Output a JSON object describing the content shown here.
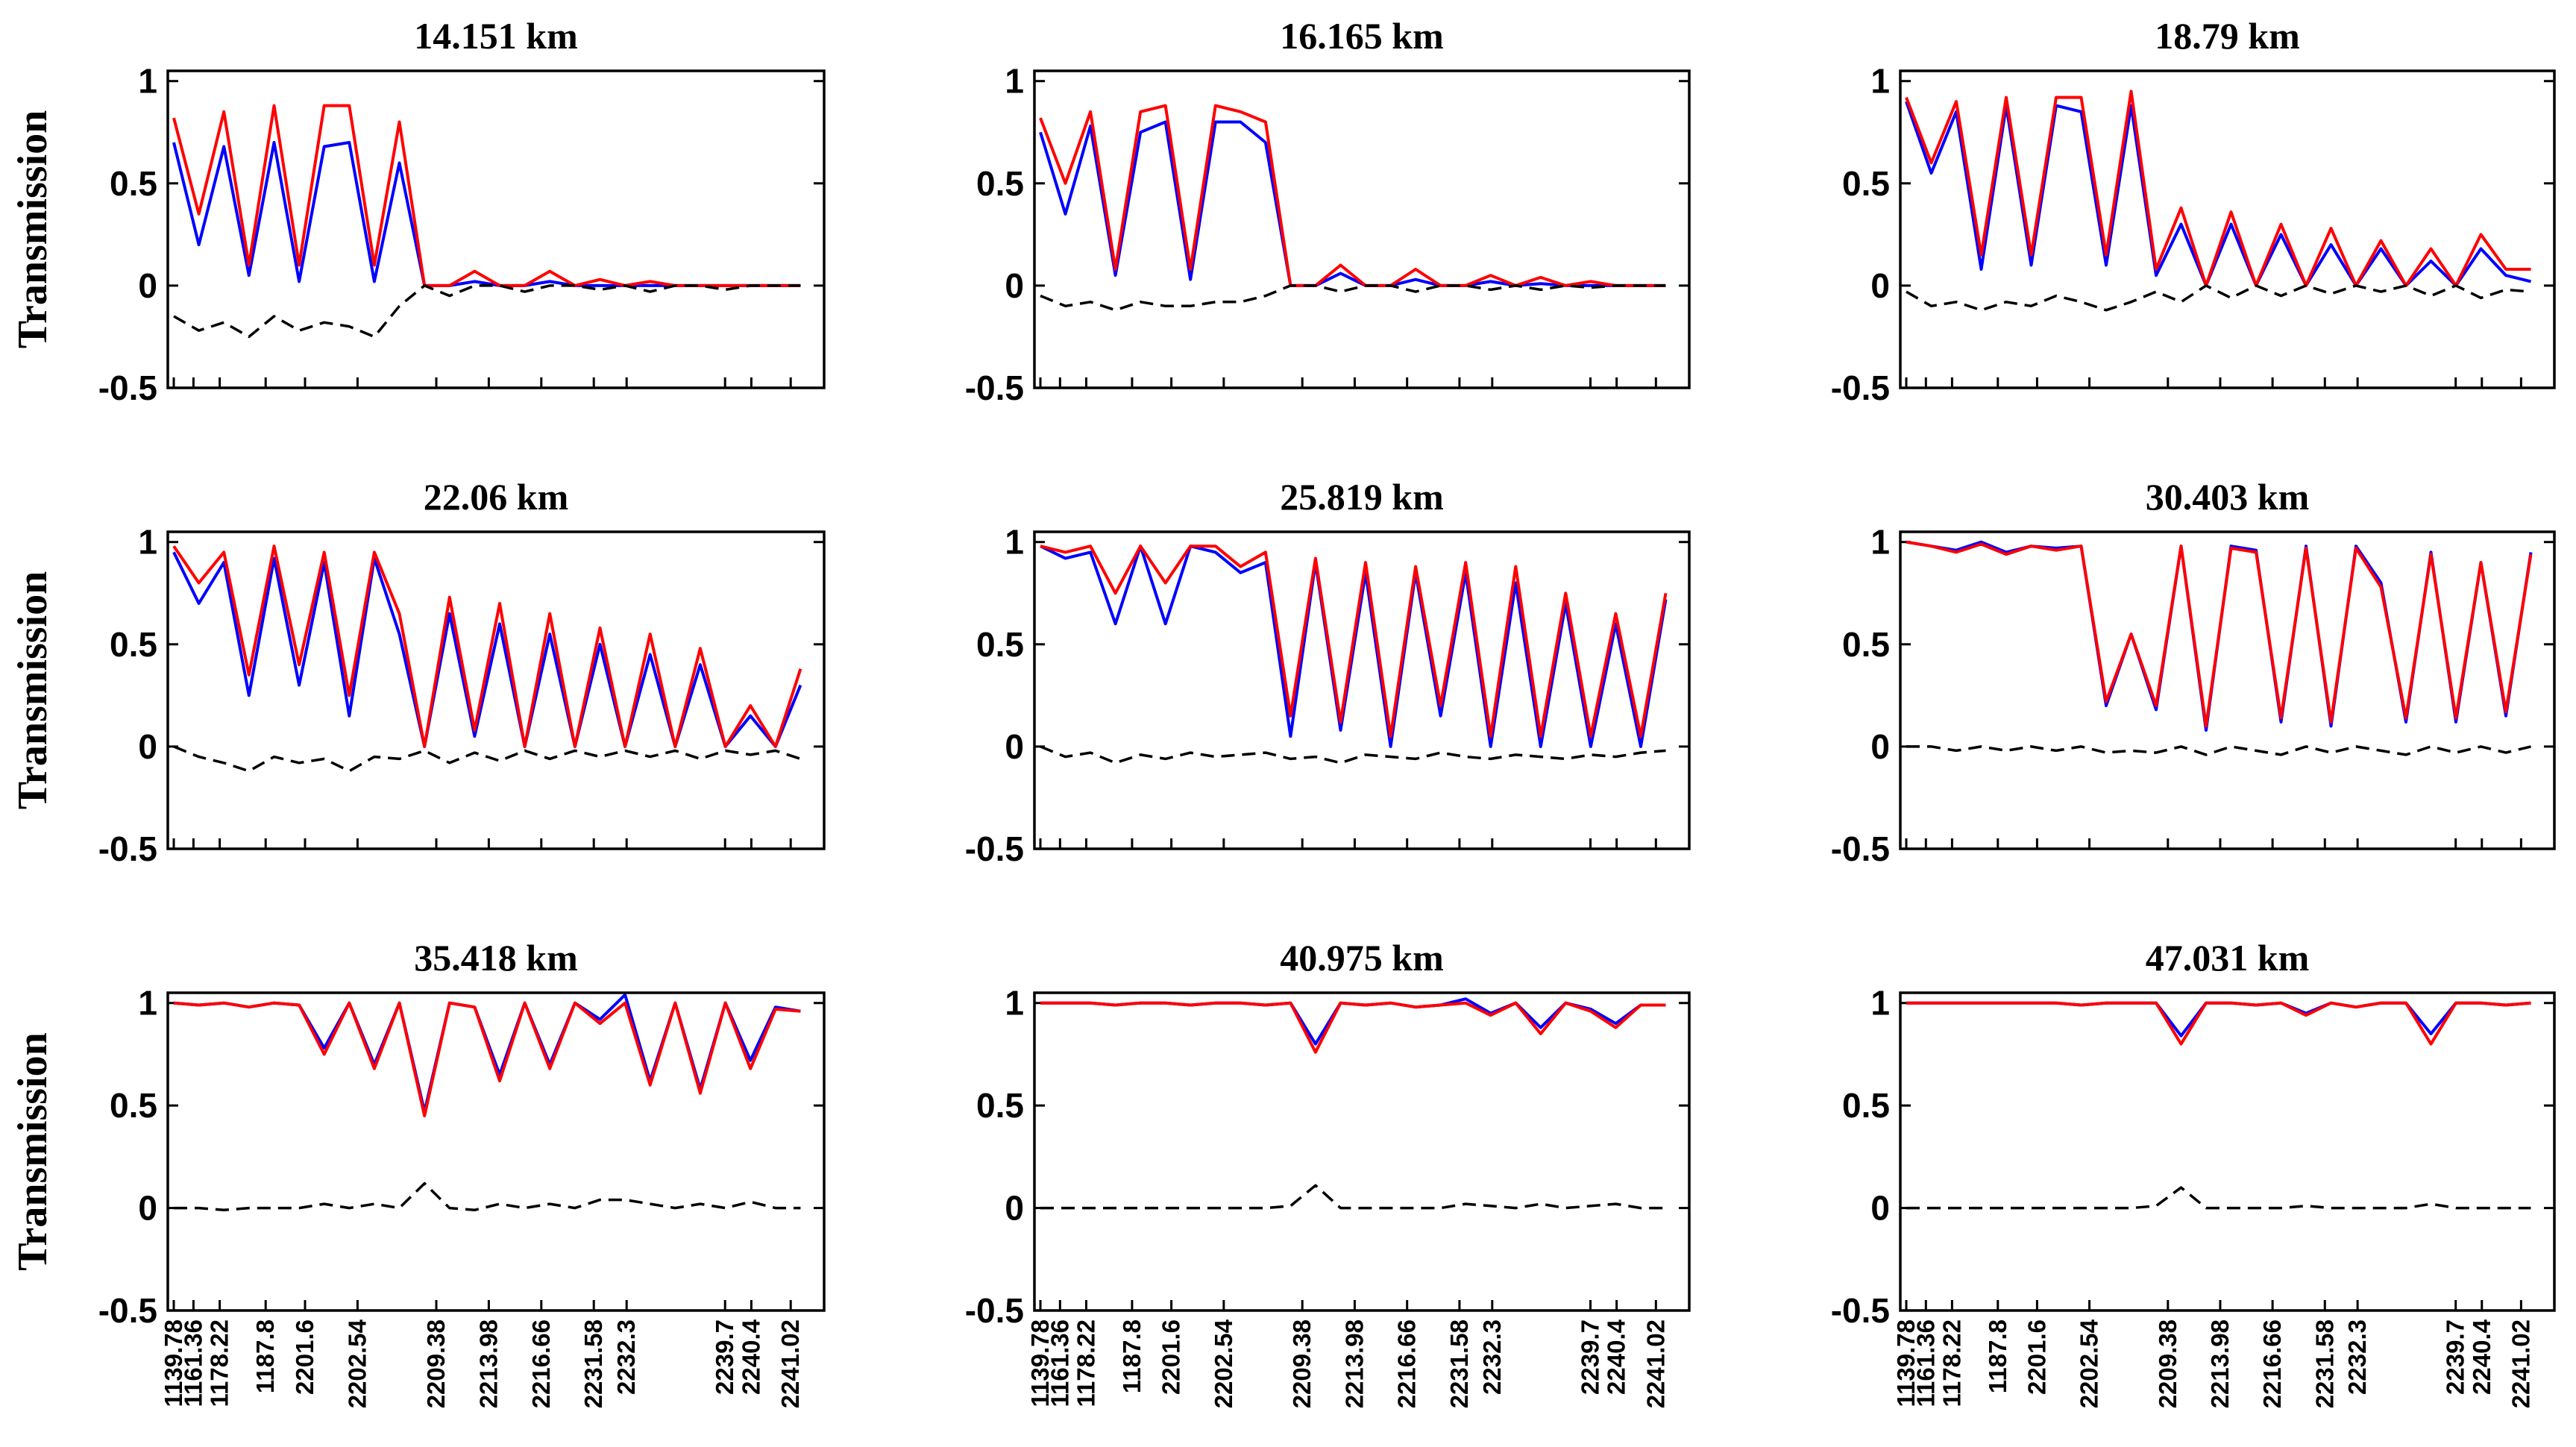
{
  "figure": {
    "ylabel": "Transmission",
    "colors": {
      "series_blue": "#0000ff",
      "series_red": "#ff0000",
      "residual": "#000000"
    }
  },
  "chart_data": [
    {
      "type": "line",
      "title": "14.151 km",
      "ylabel": "Transmission",
      "ylim": [
        -0.5,
        1.05
      ],
      "yticks": [
        1,
        0.5,
        0,
        -0.5
      ],
      "ytick_labels": [
        "1",
        "0.5",
        "0",
        "-0.5"
      ],
      "xtick_labels": [],
      "series": [
        {
          "name": "blue",
          "color": "#0000ff",
          "values": [
            0.7,
            0.2,
            0.68,
            0.05,
            0.7,
            0.02,
            0.68,
            0.7,
            0.02,
            0.6,
            0.0,
            0.0,
            0.02,
            0.0,
            0.0,
            0.02,
            0.0,
            0.0,
            0.0,
            0.0,
            0.0,
            0.0,
            0.0,
            0.0,
            0.0,
            0.0
          ]
        },
        {
          "name": "red",
          "color": "#ff0000",
          "values": [
            0.82,
            0.35,
            0.85,
            0.1,
            0.88,
            0.1,
            0.88,
            0.88,
            0.1,
            0.8,
            0.0,
            0.0,
            0.07,
            0.0,
            0.0,
            0.07,
            0.0,
            0.03,
            0.0,
            0.02,
            0.0,
            0.0,
            0.0,
            0.0,
            0.0,
            0.0
          ]
        },
        {
          "name": "residual",
          "color": "#000000",
          "values": [
            -0.15,
            -0.22,
            -0.18,
            -0.25,
            -0.15,
            -0.22,
            -0.18,
            -0.2,
            -0.25,
            -0.1,
            0.0,
            -0.05,
            0.0,
            0.0,
            -0.03,
            0.0,
            0.0,
            -0.02,
            0.0,
            -0.03,
            0.0,
            0.0,
            -0.02,
            0.0,
            0.0,
            0.0
          ]
        }
      ]
    },
    {
      "type": "line",
      "title": "16.165 km",
      "ylabel": "",
      "ylim": [
        -0.5,
        1.05
      ],
      "yticks": [
        1,
        0.5,
        0,
        -0.5
      ],
      "ytick_labels": [
        "1",
        "0.5",
        "0",
        "-0.5"
      ],
      "xtick_labels": [],
      "series": [
        {
          "name": "blue",
          "color": "#0000ff",
          "values": [
            0.75,
            0.35,
            0.78,
            0.05,
            0.75,
            0.8,
            0.03,
            0.8,
            0.8,
            0.7,
            0.0,
            0.0,
            0.06,
            0.0,
            0.0,
            0.03,
            0.0,
            0.0,
            0.02,
            0.0,
            0.01,
            0.0,
            0.0,
            0.0,
            0.0,
            0.0
          ]
        },
        {
          "name": "red",
          "color": "#ff0000",
          "values": [
            0.82,
            0.5,
            0.85,
            0.08,
            0.85,
            0.88,
            0.08,
            0.88,
            0.85,
            0.8,
            0.0,
            0.0,
            0.1,
            0.0,
            0.0,
            0.08,
            0.0,
            0.0,
            0.05,
            0.0,
            0.04,
            0.0,
            0.02,
            0.0,
            0.0,
            0.0
          ]
        },
        {
          "name": "residual",
          "color": "#000000",
          "values": [
            -0.05,
            -0.1,
            -0.08,
            -0.12,
            -0.08,
            -0.1,
            -0.1,
            -0.08,
            -0.08,
            -0.05,
            0.0,
            0.0,
            -0.03,
            0.0,
            0.0,
            -0.03,
            0.0,
            0.0,
            -0.02,
            0.0,
            -0.02,
            0.0,
            -0.01,
            0.0,
            0.0,
            0.0
          ]
        }
      ]
    },
    {
      "type": "line",
      "title": "18.79 km",
      "ylabel": "",
      "ylim": [
        -0.5,
        1.05
      ],
      "yticks": [
        1,
        0.5,
        0,
        -0.5
      ],
      "ytick_labels": [
        "1",
        "0.5",
        "0",
        "-0.5"
      ],
      "xtick_labels": [],
      "series": [
        {
          "name": "blue",
          "color": "#0000ff",
          "values": [
            0.9,
            0.55,
            0.85,
            0.08,
            0.88,
            0.1,
            0.88,
            0.85,
            0.1,
            0.88,
            0.05,
            0.3,
            0.0,
            0.3,
            0.0,
            0.25,
            0.0,
            0.2,
            0.0,
            0.18,
            0.0,
            0.12,
            0.0,
            0.18,
            0.05,
            0.02
          ]
        },
        {
          "name": "red",
          "color": "#ff0000",
          "values": [
            0.92,
            0.6,
            0.9,
            0.15,
            0.92,
            0.15,
            0.92,
            0.92,
            0.15,
            0.95,
            0.08,
            0.38,
            0.0,
            0.36,
            0.0,
            0.3,
            0.0,
            0.28,
            0.0,
            0.22,
            0.0,
            0.18,
            0.0,
            0.25,
            0.08,
            0.08
          ]
        },
        {
          "name": "residual",
          "color": "#000000",
          "values": [
            -0.03,
            -0.1,
            -0.08,
            -0.12,
            -0.08,
            -0.1,
            -0.05,
            -0.08,
            -0.12,
            -0.08,
            -0.03,
            -0.08,
            0.0,
            -0.06,
            0.0,
            -0.05,
            0.0,
            -0.04,
            0.0,
            -0.03,
            0.0,
            -0.05,
            0.0,
            -0.06,
            -0.02,
            -0.03
          ]
        }
      ]
    },
    {
      "type": "line",
      "title": "22.06 km",
      "ylabel": "Transmission",
      "ylim": [
        -0.5,
        1.05
      ],
      "yticks": [
        1,
        0.5,
        0,
        -0.5
      ],
      "ytick_labels": [
        "1",
        "0.5",
        "0",
        "-0.5"
      ],
      "xtick_labels": [],
      "series": [
        {
          "name": "blue",
          "color": "#0000ff",
          "values": [
            0.95,
            0.7,
            0.9,
            0.25,
            0.92,
            0.3,
            0.9,
            0.15,
            0.92,
            0.55,
            0.0,
            0.65,
            0.05,
            0.6,
            0.0,
            0.55,
            0.0,
            0.5,
            0.0,
            0.45,
            0.0,
            0.4,
            0.0,
            0.15,
            0.0,
            0.3
          ]
        },
        {
          "name": "red",
          "color": "#ff0000",
          "values": [
            0.98,
            0.8,
            0.95,
            0.35,
            0.98,
            0.4,
            0.95,
            0.25,
            0.95,
            0.65,
            0.0,
            0.73,
            0.08,
            0.7,
            0.0,
            0.65,
            0.0,
            0.58,
            0.0,
            0.55,
            0.0,
            0.48,
            0.0,
            0.2,
            0.0,
            0.38
          ]
        },
        {
          "name": "residual",
          "color": "#000000",
          "values": [
            0.0,
            -0.05,
            -0.08,
            -0.12,
            -0.05,
            -0.08,
            -0.06,
            -0.12,
            -0.05,
            -0.06,
            -0.02,
            -0.08,
            -0.03,
            -0.07,
            -0.02,
            -0.06,
            -0.02,
            -0.05,
            -0.02,
            -0.05,
            -0.02,
            -0.06,
            -0.02,
            -0.04,
            -0.02,
            -0.06
          ]
        }
      ]
    },
    {
      "type": "line",
      "title": "25.819 km",
      "ylabel": "",
      "ylim": [
        -0.5,
        1.05
      ],
      "yticks": [
        1,
        0.5,
        0,
        -0.5
      ],
      "ytick_labels": [
        "1",
        "0.5",
        "0",
        "-0.5"
      ],
      "xtick_labels": [],
      "series": [
        {
          "name": "blue",
          "color": "#0000ff",
          "values": [
            0.98,
            0.92,
            0.95,
            0.6,
            0.98,
            0.6,
            0.98,
            0.95,
            0.85,
            0.9,
            0.05,
            0.9,
            0.08,
            0.85,
            0.0,
            0.85,
            0.15,
            0.85,
            0.0,
            0.8,
            0.0,
            0.7,
            0.0,
            0.6,
            0.0,
            0.72
          ]
        },
        {
          "name": "red",
          "color": "#ff0000",
          "values": [
            0.98,
            0.95,
            0.98,
            0.75,
            0.98,
            0.8,
            0.98,
            0.98,
            0.88,
            0.95,
            0.15,
            0.92,
            0.12,
            0.9,
            0.05,
            0.88,
            0.2,
            0.9,
            0.05,
            0.88,
            0.05,
            0.75,
            0.05,
            0.65,
            0.05,
            0.75
          ]
        },
        {
          "name": "residual",
          "color": "#000000",
          "values": [
            0.0,
            -0.05,
            -0.03,
            -0.08,
            -0.04,
            -0.06,
            -0.03,
            -0.05,
            -0.04,
            -0.03,
            -0.06,
            -0.05,
            -0.08,
            -0.04,
            -0.05,
            -0.06,
            -0.03,
            -0.05,
            -0.06,
            -0.04,
            -0.05,
            -0.06,
            -0.04,
            -0.05,
            -0.03,
            -0.02
          ]
        }
      ]
    },
    {
      "type": "line",
      "title": "30.403 km",
      "ylabel": "",
      "ylim": [
        -0.5,
        1.05
      ],
      "yticks": [
        1,
        0.5,
        0,
        -0.5
      ],
      "ytick_labels": [
        "1",
        "0.5",
        "0",
        "-0.5"
      ],
      "xtick_labels": [],
      "series": [
        {
          "name": "blue",
          "color": "#0000ff",
          "values": [
            1.0,
            0.98,
            0.96,
            1.0,
            0.95,
            0.98,
            0.97,
            0.98,
            0.2,
            0.55,
            0.18,
            0.98,
            0.08,
            0.98,
            0.96,
            0.12,
            0.98,
            0.1,
            0.98,
            0.8,
            0.12,
            0.95,
            0.12,
            0.9,
            0.15,
            0.95
          ]
        },
        {
          "name": "red",
          "color": "#ff0000",
          "values": [
            1.0,
            0.98,
            0.95,
            0.99,
            0.94,
            0.98,
            0.96,
            0.98,
            0.22,
            0.55,
            0.2,
            0.98,
            0.1,
            0.97,
            0.95,
            0.14,
            0.97,
            0.12,
            0.97,
            0.78,
            0.14,
            0.94,
            0.14,
            0.9,
            0.17,
            0.94
          ]
        },
        {
          "name": "residual",
          "color": "#000000",
          "values": [
            0.0,
            0.0,
            -0.02,
            0.0,
            -0.02,
            0.0,
            -0.02,
            0.0,
            -0.03,
            -0.02,
            -0.03,
            0.0,
            -0.04,
            0.0,
            -0.02,
            -0.04,
            0.0,
            -0.03,
            0.0,
            -0.02,
            -0.04,
            0.0,
            -0.03,
            0.0,
            -0.03,
            0.0
          ]
        }
      ]
    },
    {
      "type": "line",
      "title": "35.418 km",
      "ylabel": "Transmission",
      "ylim": [
        -0.5,
        1.05
      ],
      "yticks": [
        1,
        0.5,
        0,
        -0.5
      ],
      "ytick_labels": [
        "1",
        "0.5",
        "0",
        "-0.5"
      ],
      "xtick_labels": [
        "1139.78",
        "1161.36",
        "1178.22",
        "1187.8",
        "2201.6",
        "2202.54",
        "2209.38",
        "2213.98",
        "2216.66",
        "2231.58",
        "2232.3",
        "2239.7",
        "2240.4",
        "2241.02"
      ],
      "series": [
        {
          "name": "blue",
          "color": "#0000ff",
          "values": [
            1.0,
            0.99,
            1.0,
            0.98,
            1.0,
            0.99,
            0.78,
            1.0,
            0.7,
            1.0,
            0.47,
            1.0,
            0.98,
            0.65,
            1.0,
            0.7,
            1.0,
            0.92,
            1.04,
            0.62,
            1.0,
            0.58,
            1.0,
            0.72,
            0.98,
            0.96
          ]
        },
        {
          "name": "red",
          "color": "#ff0000",
          "values": [
            1.0,
            0.99,
            1.0,
            0.98,
            1.0,
            0.99,
            0.75,
            1.0,
            0.68,
            1.0,
            0.45,
            1.0,
            0.98,
            0.62,
            1.0,
            0.68,
            1.0,
            0.9,
            1.0,
            0.6,
            1.0,
            0.56,
            1.0,
            0.68,
            0.97,
            0.96
          ]
        },
        {
          "name": "residual",
          "color": "#000000",
          "values": [
            0.0,
            0.0,
            -0.01,
            0.0,
            0.0,
            0.0,
            0.02,
            0.0,
            0.02,
            0.0,
            0.12,
            0.0,
            -0.01,
            0.02,
            0.0,
            0.02,
            0.0,
            0.04,
            0.04,
            0.02,
            0.0,
            0.02,
            0.0,
            0.03,
            0.0,
            0.0
          ]
        }
      ]
    },
    {
      "type": "line",
      "title": "40.975 km",
      "ylabel": "",
      "ylim": [
        -0.5,
        1.05
      ],
      "yticks": [
        1,
        0.5,
        0,
        -0.5
      ],
      "ytick_labels": [
        "1",
        "0.5",
        "0",
        "-0.5"
      ],
      "xtick_labels": [
        "1139.78",
        "1161.36",
        "1178.22",
        "1187.8",
        "2201.6",
        "2202.54",
        "2209.38",
        "2213.98",
        "2216.66",
        "2231.58",
        "2232.3",
        "2239.7",
        "2240.4",
        "2241.02"
      ],
      "series": [
        {
          "name": "blue",
          "color": "#0000ff",
          "values": [
            1.0,
            1.0,
            1.0,
            0.99,
            1.0,
            1.0,
            0.99,
            1.0,
            1.0,
            0.99,
            1.0,
            0.8,
            1.0,
            0.99,
            1.0,
            0.98,
            0.99,
            1.02,
            0.95,
            1.0,
            0.88,
            1.0,
            0.97,
            0.9,
            0.99,
            0.99
          ]
        },
        {
          "name": "red",
          "color": "#ff0000",
          "values": [
            1.0,
            1.0,
            1.0,
            0.99,
            1.0,
            1.0,
            0.99,
            1.0,
            1.0,
            0.99,
            1.0,
            0.76,
            1.0,
            0.99,
            1.0,
            0.98,
            0.99,
            1.0,
            0.94,
            1.0,
            0.85,
            1.0,
            0.96,
            0.88,
            0.99,
            0.99
          ]
        },
        {
          "name": "residual",
          "color": "#000000",
          "values": [
            0.0,
            0.0,
            0.0,
            0.0,
            0.0,
            0.0,
            0.0,
            0.0,
            0.0,
            0.0,
            0.01,
            0.11,
            0.0,
            0.0,
            0.0,
            0.0,
            0.0,
            0.02,
            0.01,
            0.0,
            0.02,
            0.0,
            0.01,
            0.02,
            0.0,
            0.0
          ]
        }
      ]
    },
    {
      "type": "line",
      "title": "47.031 km",
      "ylabel": "",
      "ylim": [
        -0.5,
        1.05
      ],
      "yticks": [
        1,
        0.5,
        0,
        -0.5
      ],
      "ytick_labels": [
        "1",
        "0.5",
        "0",
        "-0.5"
      ],
      "xtick_labels": [
        "1139.78",
        "1161.36",
        "1178.22",
        "1187.8",
        "2201.6",
        "2202.54",
        "2209.38",
        "2213.98",
        "2216.66",
        "2231.58",
        "2232.3",
        "2239.7",
        "2240.4",
        "2241.02"
      ],
      "series": [
        {
          "name": "blue",
          "color": "#0000ff",
          "values": [
            1.0,
            1.0,
            1.0,
            1.0,
            1.0,
            1.0,
            1.0,
            0.99,
            1.0,
            1.0,
            1.0,
            0.84,
            1.0,
            1.0,
            0.99,
            1.0,
            0.95,
            1.0,
            0.98,
            1.0,
            1.0,
            0.85,
            1.0,
            1.0,
            0.99,
            1.0
          ]
        },
        {
          "name": "red",
          "color": "#ff0000",
          "values": [
            1.0,
            1.0,
            1.0,
            1.0,
            1.0,
            1.0,
            1.0,
            0.99,
            1.0,
            1.0,
            1.0,
            0.8,
            1.0,
            1.0,
            0.99,
            1.0,
            0.94,
            1.0,
            0.98,
            1.0,
            1.0,
            0.8,
            1.0,
            1.0,
            0.99,
            1.0
          ]
        },
        {
          "name": "residual",
          "color": "#000000",
          "values": [
            0.0,
            0.0,
            0.0,
            0.0,
            0.0,
            0.0,
            0.0,
            0.0,
            0.0,
            0.0,
            0.01,
            0.1,
            0.0,
            0.0,
            0.0,
            0.0,
            0.01,
            0.0,
            0.0,
            0.0,
            0.0,
            0.02,
            0.0,
            0.0,
            0.0,
            0.0
          ]
        }
      ]
    }
  ]
}
